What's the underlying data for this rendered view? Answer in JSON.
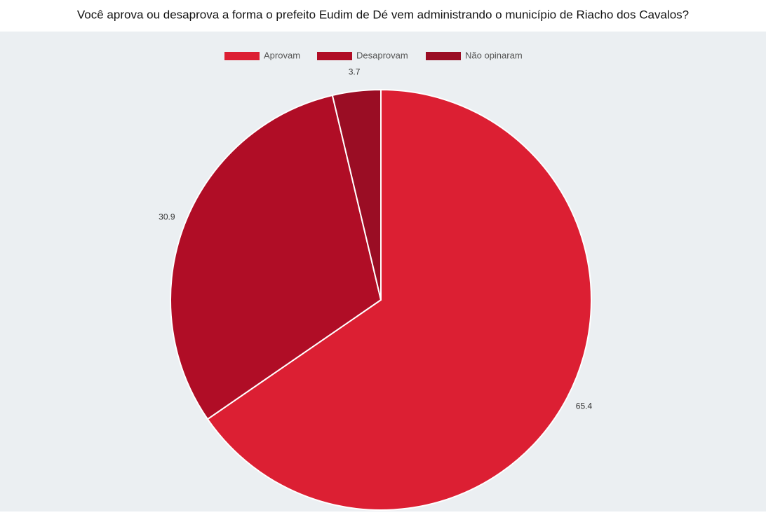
{
  "chart_data": {
    "type": "pie",
    "title": "Você aprova ou desaprova a forma o prefeito Eudim de Dé vem administrando o município de Riacho dos Cavalos?",
    "categories": [
      "Aprovam",
      "Desaprovam",
      "Não opinaram"
    ],
    "values": [
      65.4,
      30.9,
      3.7
    ],
    "colors": [
      "#dc1f33",
      "#b00d26",
      "#9a0d24"
    ]
  }
}
